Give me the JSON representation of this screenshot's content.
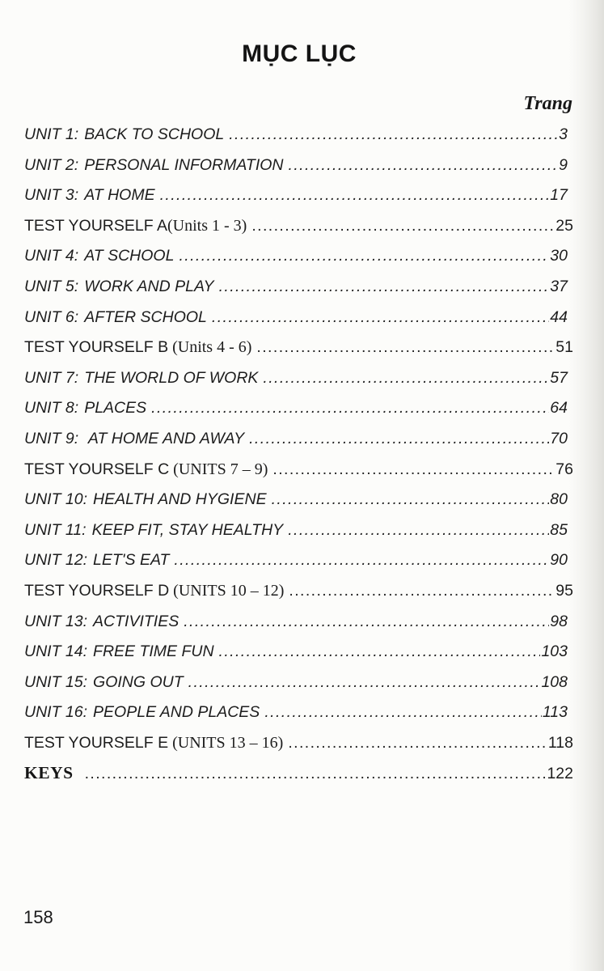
{
  "page": {
    "title": "MỤC LỤC",
    "column_header": "Trang",
    "footer_page_number": "158"
  },
  "colors": {
    "text": "#1d1d1d",
    "paper": "#fcfcfa",
    "edge_shadow": "#9e9c92"
  },
  "toc": {
    "entries": [
      {
        "variant": "unit",
        "unit": "UNIT 1:",
        "label": "BACK TO SCHOOL",
        "note": "",
        "page": "3"
      },
      {
        "variant": "unit",
        "unit": "UNIT 2:",
        "label": "PERSONAL INFORMATION",
        "note": "",
        "page": "9"
      },
      {
        "variant": "unit",
        "unit": "UNIT 3:",
        "label": "AT HOME",
        "note": "",
        "page": "17"
      },
      {
        "variant": "test",
        "unit": "",
        "label": "TEST YOURSELF A",
        "note": "(Units 1 - 3)",
        "page": "25"
      },
      {
        "variant": "unit",
        "unit": "UNIT 4:",
        "label": "AT SCHOOL",
        "note": "",
        "page": "30"
      },
      {
        "variant": "unit",
        "unit": "UNIT 5:",
        "label": "WORK AND PLAY",
        "note": "",
        "page": "37"
      },
      {
        "variant": "unit",
        "unit": "UNIT 6:",
        "label": "AFTER SCHOOL",
        "note": "",
        "page": "44"
      },
      {
        "variant": "test",
        "unit": "",
        "label": "TEST YOURSELF B",
        "note": " (Units 4 - 6)",
        "page": "51"
      },
      {
        "variant": "unit",
        "unit": "UNIT 7:",
        "label": "THE WORLD OF WORK",
        "note": "",
        "page": "57"
      },
      {
        "variant": "unit",
        "unit": "UNIT 8:",
        "label": "PLACES",
        "note": "",
        "page": "64"
      },
      {
        "variant": "unit",
        "unit": "UNIT 9:",
        "label": " AT HOME AND AWAY",
        "note": "",
        "page": "70"
      },
      {
        "variant": "test",
        "unit": "",
        "label": "TEST YOURSELF C",
        "note": " (UNITS 7 – 9)",
        "page": "76"
      },
      {
        "variant": "unit",
        "unit": "UNIT 10:",
        "label": "HEALTH AND HYGIENE",
        "note": "",
        "page": "80"
      },
      {
        "variant": "unit",
        "unit": "UNIT 11:",
        "label": "KEEP FIT, STAY HEALTHY",
        "note": "",
        "page": "85"
      },
      {
        "variant": "unit",
        "unit": "UNIT 12:",
        "label": "LET'S EAT",
        "note": "",
        "page": "90"
      },
      {
        "variant": "test",
        "unit": "",
        "label": "TEST YOURSELF D",
        "note": " (UNITS 10 – 12)",
        "page": "95"
      },
      {
        "variant": "unit",
        "unit": "UNIT 13:",
        "label": "ACTIVITIES",
        "note": "",
        "page": "98"
      },
      {
        "variant": "unit",
        "unit": "UNIT 14:",
        "label": "FREE TIME FUN",
        "note": "",
        "page": "103"
      },
      {
        "variant": "unit",
        "unit": "UNIT 15:",
        "label": "GOING OUT",
        "note": "",
        "page": "108"
      },
      {
        "variant": "unit",
        "unit": "UNIT 16:",
        "label": "PEOPLE AND PLACES",
        "note": "",
        "page": "113"
      },
      {
        "variant": "test",
        "unit": "",
        "label": "TEST YOURSELF E",
        "note": " (UNITS 13 – 16)",
        "page": "118"
      },
      {
        "variant": "keys",
        "unit": "",
        "label": "KEYS",
        "note": "",
        "page": "122"
      }
    ]
  }
}
